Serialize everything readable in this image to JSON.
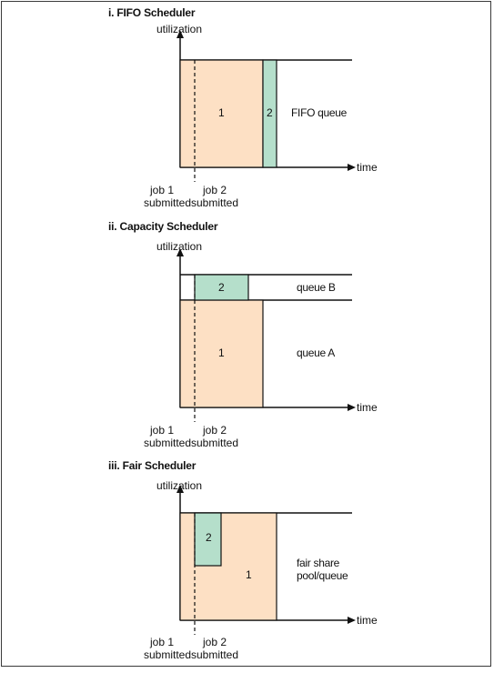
{
  "colors": {
    "job1": "#fde0c4",
    "job2": "#b5dfcb",
    "line": "#111111"
  },
  "panels": [
    {
      "title": "i. FIFO Scheduler",
      "y_label": "utilization",
      "x_label": "time",
      "job1_label": "1",
      "job2_label": "2",
      "queue_labels": [
        "FIFO queue"
      ],
      "submit1": [
        "job 1",
        "submitted"
      ],
      "submit2": [
        "job 2",
        "submitted"
      ]
    },
    {
      "title": "ii. Capacity Scheduler",
      "y_label": "utilization",
      "x_label": "time",
      "job1_label": "1",
      "job2_label": "2",
      "queue_labels": [
        "queue B",
        "queue A"
      ],
      "submit1": [
        "job 1",
        "submitted"
      ],
      "submit2": [
        "job 2",
        "submitted"
      ]
    },
    {
      "title": "iii. Fair Scheduler",
      "y_label": "utilization",
      "x_label": "time",
      "job1_label": "1",
      "job2_label": "2",
      "queue_labels": [
        "fair share pool/queue"
      ],
      "submit1": [
        "job 1",
        "submitted"
      ],
      "submit2": [
        "job 2",
        "submitted"
      ]
    }
  ]
}
